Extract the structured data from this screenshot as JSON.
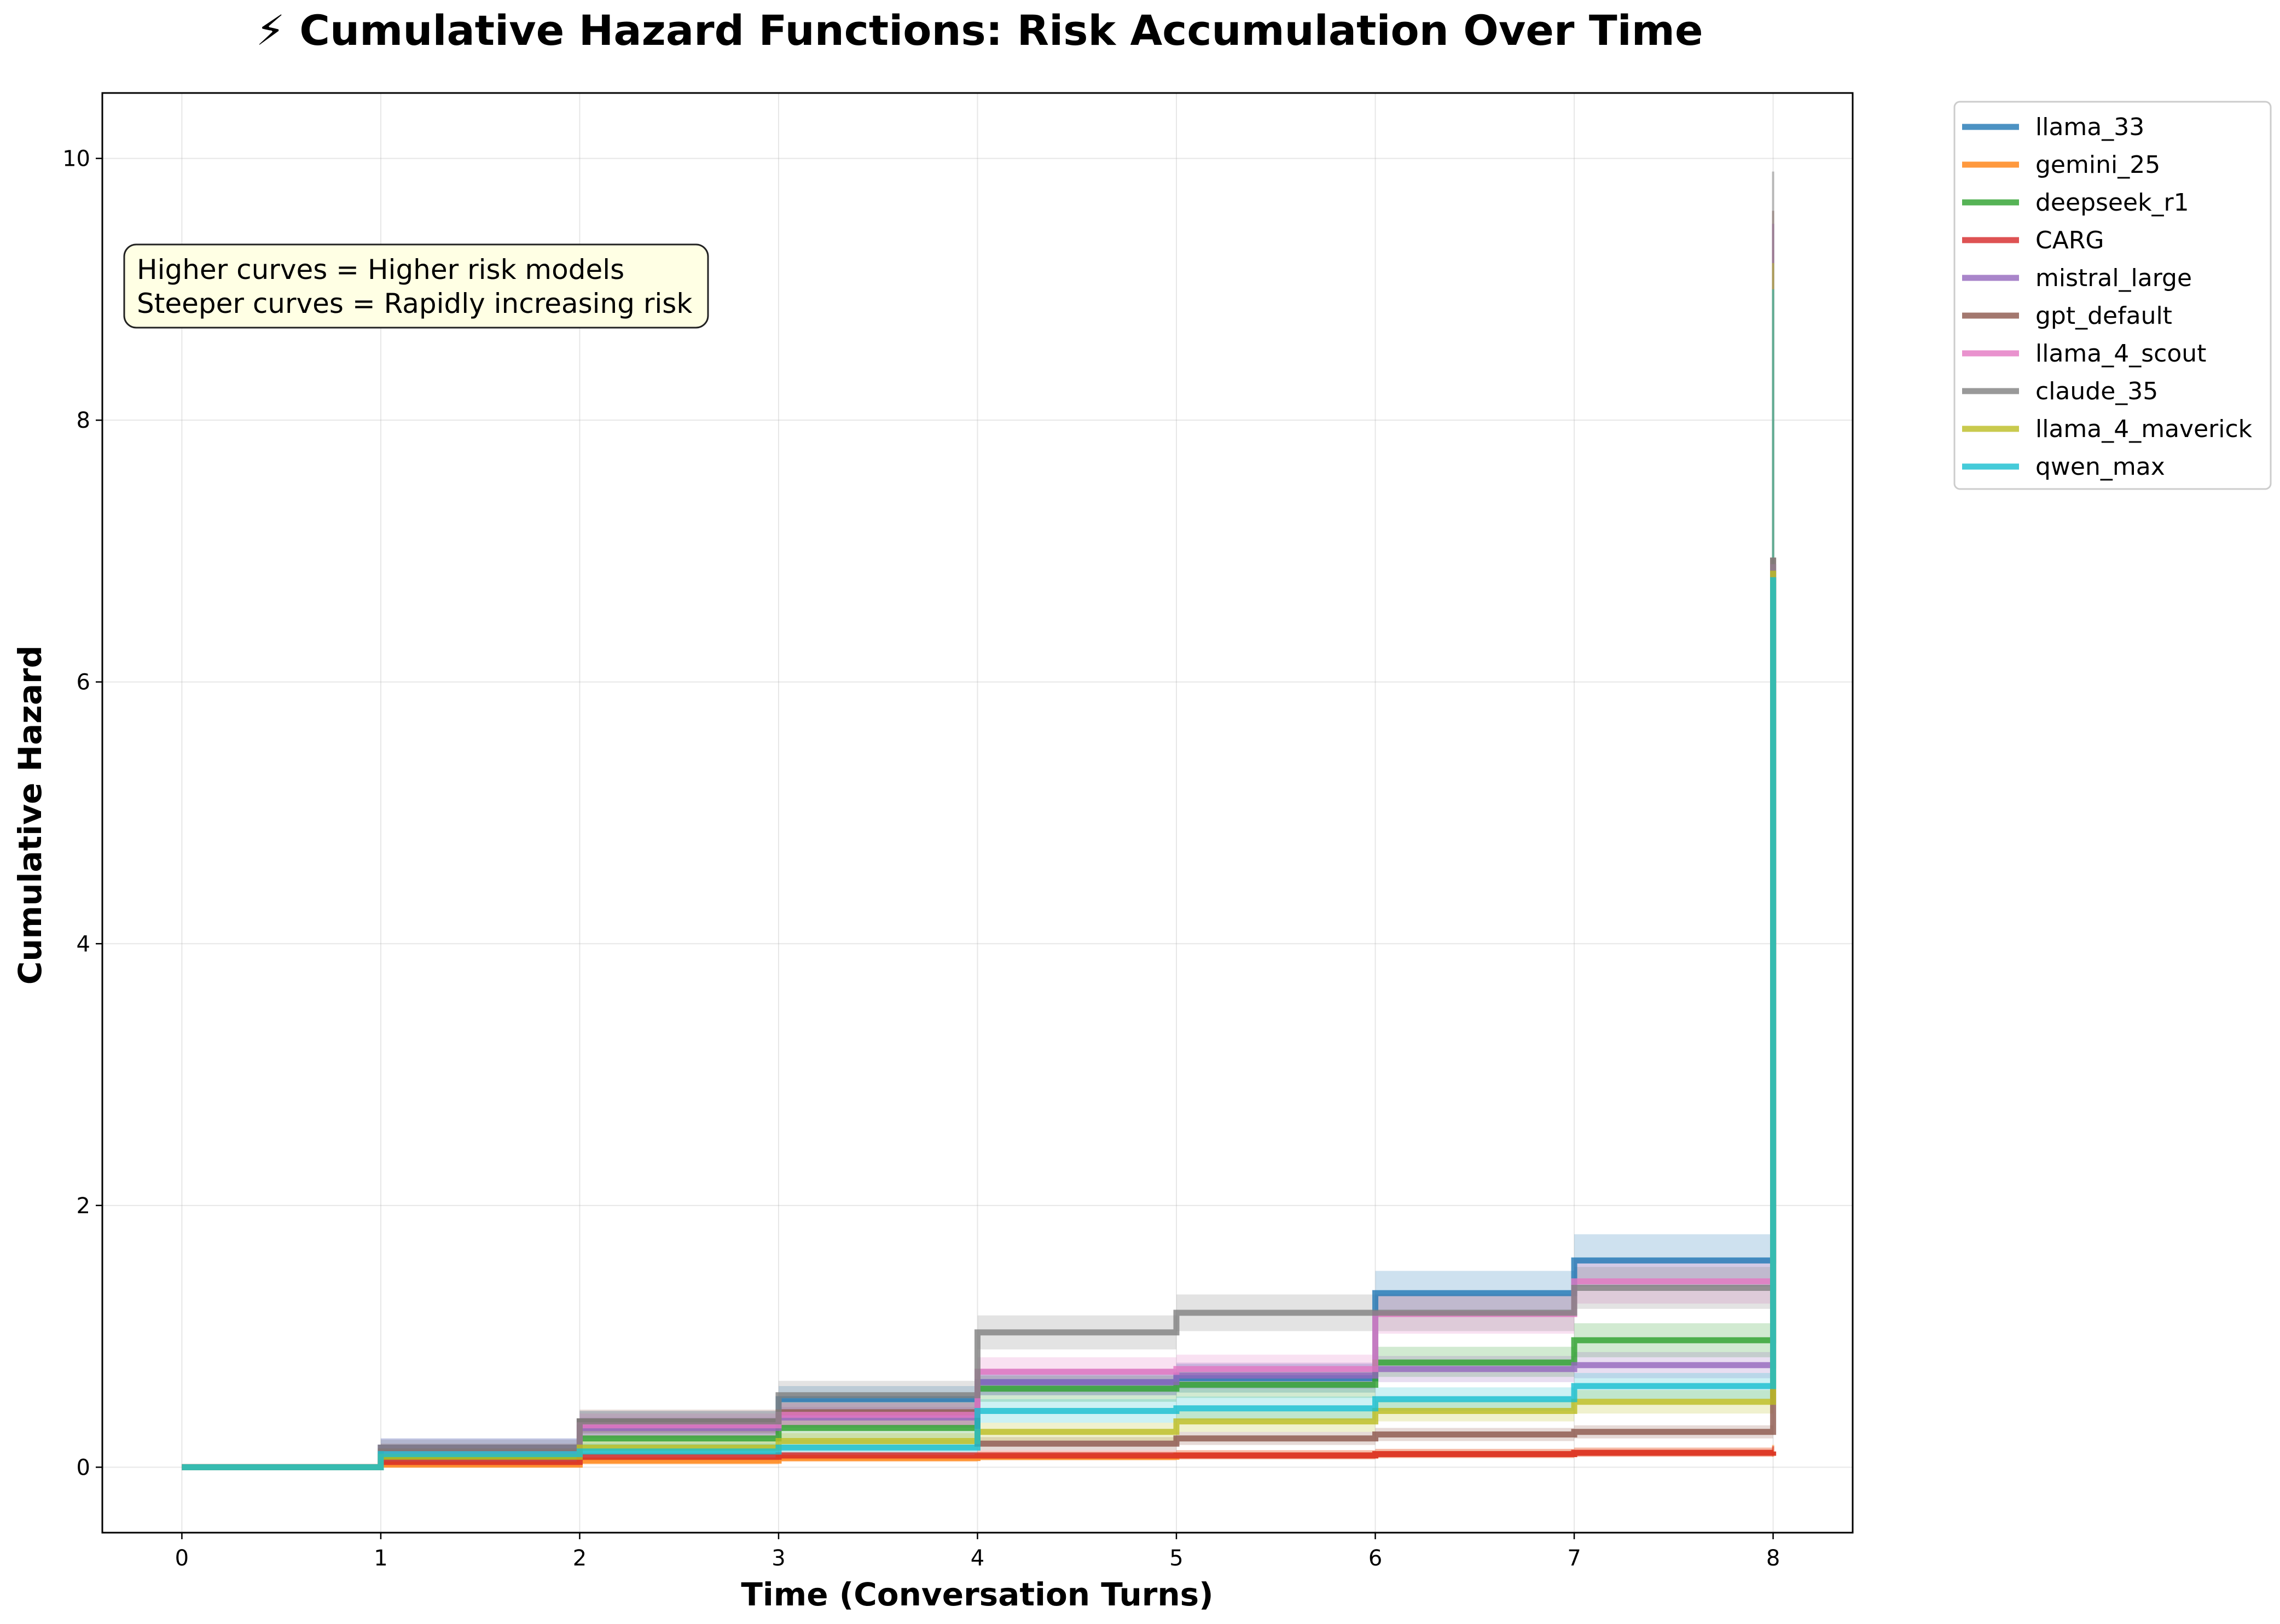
{
  "chart_data": {
    "type": "line",
    "title": "⚡ Cumulative Hazard Functions: Risk Accumulation Over Time",
    "xlabel": "Time (Conversation Turns)",
    "ylabel": "Cumulative Hazard",
    "xlim": [
      -0.4,
      8.4
    ],
    "ylim": [
      -0.5,
      10.5
    ],
    "x_ticks": [
      "0",
      "1",
      "2",
      "3",
      "4",
      "5",
      "6",
      "7",
      "8"
    ],
    "y_ticks": [
      "0",
      "2",
      "4",
      "6",
      "8",
      "10"
    ],
    "grid": true,
    "legend_position": "outside-top-right",
    "step": "post",
    "annotation": [
      "Higher curves = Higher risk models",
      "Steeper curves = Rapidly increasing risk"
    ],
    "x": [
      0,
      1,
      2,
      3,
      4,
      5,
      6,
      7,
      8
    ],
    "series": [
      {
        "name": "llama_33",
        "color": "#1f77b4",
        "values": [
          0,
          0.15,
          0.35,
          0.52,
          0.65,
          0.68,
          1.33,
          1.58,
          6.9
        ],
        "ci": [
          [
            0,
            0.08,
            0.25,
            0.42,
            0.55,
            0.57,
            1.17,
            1.38,
            3.5
          ],
          [
            0,
            0.22,
            0.43,
            0.62,
            0.75,
            0.79,
            1.5,
            1.78,
            9.5
          ]
        ]
      },
      {
        "name": "gemini_25",
        "color": "#ff7f0e",
        "values": [
          0,
          0.02,
          0.05,
          0.07,
          0.08,
          0.09,
          0.1,
          0.11,
          0.12
        ],
        "ci": [
          [
            0,
            0.0,
            0.02,
            0.04,
            0.05,
            0.06,
            0.07,
            0.08,
            0.08
          ],
          [
            0,
            0.05,
            0.08,
            0.1,
            0.12,
            0.13,
            0.14,
            0.15,
            0.17
          ]
        ]
      },
      {
        "name": "deepseek_r1",
        "color": "#2ca02c",
        "values": [
          0,
          0.08,
          0.22,
          0.3,
          0.6,
          0.63,
          0.8,
          0.97,
          6.8
        ],
        "ci": [
          [
            0,
            0.03,
            0.14,
            0.22,
            0.5,
            0.53,
            0.69,
            0.84,
            3.5
          ],
          [
            0,
            0.13,
            0.3,
            0.38,
            0.7,
            0.73,
            0.92,
            1.1,
            9.0
          ]
        ]
      },
      {
        "name": "CARG",
        "color": "#d62728",
        "values": [
          0,
          0.04,
          0.08,
          0.09,
          0.09,
          0.09,
          0.1,
          0.11,
          0.12
        ],
        "ci": [
          [
            0,
            0.01,
            0.05,
            0.06,
            0.06,
            0.06,
            0.07,
            0.08,
            0.09
          ],
          [
            0,
            0.07,
            0.11,
            0.12,
            0.13,
            0.13,
            0.14,
            0.15,
            0.16
          ]
        ]
      },
      {
        "name": "mistral_large",
        "color": "#9467bd",
        "values": [
          0,
          0.15,
          0.3,
          0.38,
          0.65,
          0.7,
          0.75,
          0.78,
          6.85
        ],
        "ci": [
          [
            0,
            0.08,
            0.22,
            0.3,
            0.55,
            0.6,
            0.65,
            0.68,
            3.5
          ],
          [
            0,
            0.22,
            0.38,
            0.46,
            0.75,
            0.8,
            0.85,
            0.88,
            9.3
          ]
        ]
      },
      {
        "name": "gpt_default",
        "color": "#8c564b",
        "values": [
          0,
          0.12,
          0.35,
          0.42,
          0.18,
          0.22,
          0.25,
          0.27,
          6.95
        ],
        "ci": [
          [
            0,
            0.06,
            0.26,
            0.32,
            0.13,
            0.17,
            0.2,
            0.22,
            3.5
          ],
          [
            0,
            0.18,
            0.44,
            0.52,
            0.23,
            0.27,
            0.3,
            0.32,
            9.6
          ]
        ]
      },
      {
        "name": "llama_4_scout",
        "color": "#e377c2",
        "values": [
          0,
          0.1,
          0.32,
          0.4,
          0.73,
          0.75,
          1.17,
          1.42,
          6.9
        ],
        "ci": [
          [
            0,
            0.04,
            0.23,
            0.31,
            0.62,
            0.64,
            1.02,
            1.25,
            3.5
          ],
          [
            0,
            0.16,
            0.41,
            0.49,
            0.84,
            0.86,
            1.32,
            1.59,
            9.5
          ]
        ]
      },
      {
        "name": "claude_35",
        "color": "#7f7f7f",
        "values": [
          0,
          0.15,
          0.35,
          0.55,
          1.03,
          1.18,
          1.18,
          1.37,
          6.95
        ],
        "ci": [
          [
            0,
            0.09,
            0.27,
            0.44,
            0.9,
            1.04,
            1.04,
            1.21,
            3.5
          ],
          [
            0,
            0.21,
            0.43,
            0.66,
            1.16,
            1.32,
            1.32,
            1.53,
            9.9
          ]
        ]
      },
      {
        "name": "llama_4_maverick",
        "color": "#bcbd22",
        "values": [
          0,
          0.08,
          0.15,
          0.2,
          0.27,
          0.35,
          0.43,
          0.5,
          6.85
        ],
        "ci": [
          [
            0,
            0.03,
            0.09,
            0.14,
            0.2,
            0.27,
            0.35,
            0.41,
            3.5
          ],
          [
            0,
            0.13,
            0.21,
            0.26,
            0.34,
            0.43,
            0.51,
            0.59,
            9.2
          ]
        ]
      },
      {
        "name": "qwen_max",
        "color": "#17becf",
        "values": [
          0,
          0.1,
          0.12,
          0.15,
          0.43,
          0.45,
          0.52,
          0.62,
          6.8
        ],
        "ci": [
          [
            0,
            0.04,
            0.06,
            0.09,
            0.34,
            0.36,
            0.43,
            0.52,
            3.5
          ],
          [
            0,
            0.16,
            0.18,
            0.21,
            0.52,
            0.54,
            0.61,
            0.72,
            9.0
          ]
        ]
      }
    ]
  }
}
